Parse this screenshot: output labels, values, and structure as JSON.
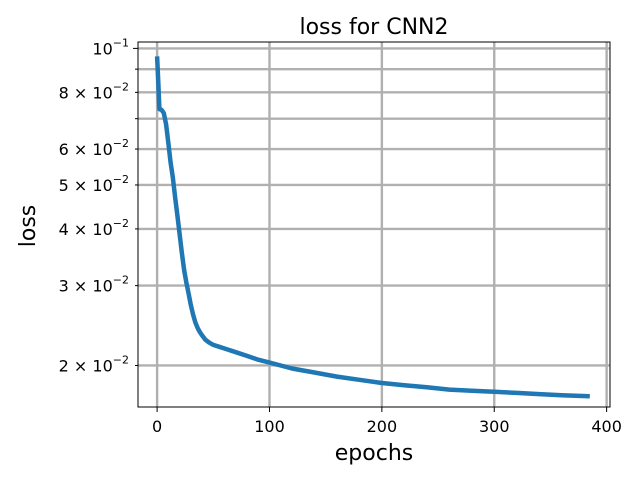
{
  "chart_data": {
    "type": "line",
    "title": "loss for CNN2",
    "xlabel": "epochs",
    "ylabel": "loss",
    "xscale": "linear",
    "yscale": "log",
    "xlim": [
      -17,
      403
    ],
    "ylim": [
      0.0162,
      0.1033
    ],
    "grid": true,
    "color": "#1f77b4",
    "x_ticks": [
      {
        "value": 0,
        "label": "0"
      },
      {
        "value": 100,
        "label": "100"
      },
      {
        "value": 200,
        "label": "200"
      },
      {
        "value": 300,
        "label": "300"
      },
      {
        "value": 400,
        "label": "400"
      }
    ],
    "y_major_ticks": [
      {
        "value": 0.1,
        "label": "10",
        "exp": "−1",
        "prefix": ""
      }
    ],
    "y_minor_ticks": [
      {
        "value": 0.02,
        "prefix": "2 × ",
        "base": "10",
        "exp": "−2"
      },
      {
        "value": 0.03,
        "prefix": "3 × ",
        "base": "10",
        "exp": "−2"
      },
      {
        "value": 0.04,
        "prefix": "4 × ",
        "base": "10",
        "exp": "−2"
      },
      {
        "value": 0.05,
        "prefix": "5 × ",
        "base": "10",
        "exp": "−2"
      },
      {
        "value": 0.06,
        "prefix": "6 × ",
        "base": "10",
        "exp": "−2"
      },
      {
        "value": 0.07,
        "prefix": "",
        "base": "",
        "exp": ""
      },
      {
        "value": 0.08,
        "prefix": "8 × ",
        "base": "10",
        "exp": "−2"
      },
      {
        "value": 0.09,
        "prefix": "",
        "base": "",
        "exp": ""
      }
    ],
    "series": [
      {
        "x": [
          0,
          1,
          2,
          4,
          6,
          8,
          10,
          12,
          14,
          16,
          18,
          20,
          22,
          24,
          26,
          28,
          30,
          32,
          34,
          36,
          38,
          40,
          43,
          46,
          50,
          55,
          60,
          70,
          80,
          90,
          100,
          110,
          120,
          140,
          160,
          180,
          200,
          220,
          240,
          260,
          280,
          300,
          320,
          340,
          360,
          385
        ],
        "y": [
          0.096,
          0.085,
          0.0735,
          0.0732,
          0.072,
          0.068,
          0.062,
          0.056,
          0.052,
          0.047,
          0.043,
          0.039,
          0.0355,
          0.0325,
          0.0305,
          0.0288,
          0.0272,
          0.0259,
          0.0249,
          0.0242,
          0.0237,
          0.0233,
          0.0228,
          0.0225,
          0.0222,
          0.022,
          0.0218,
          0.0214,
          0.021,
          0.0206,
          0.0203,
          0.02,
          0.0197,
          0.0193,
          0.0189,
          0.0186,
          0.0183,
          0.0181,
          0.0179,
          0.0177,
          0.0176,
          0.0175,
          0.0174,
          0.0173,
          0.0172,
          0.0171
        ]
      }
    ]
  }
}
